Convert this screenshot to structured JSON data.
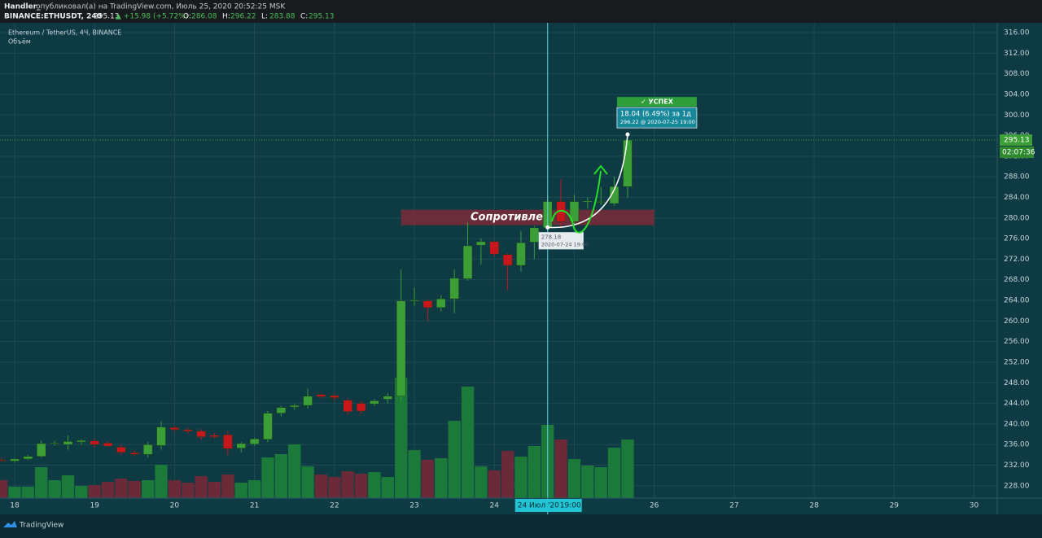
{
  "header": {
    "author": "Handler_",
    "published": "опубликовал(а) на TradingView.com, Июль 25, 2020 20:52:25 MSK",
    "symbol": "BINANCE:ETHUSDT, 240",
    "last": "295.13",
    "change": "▲ +15.98 (+5.72%)",
    "ohlc": [
      {
        "label": "O:",
        "value": "286.08"
      },
      {
        "label": "H:",
        "value": "296.22"
      },
      {
        "label": "L:",
        "value": "283.88"
      },
      {
        "label": "C:",
        "value": "295.13"
      }
    ]
  },
  "chart_data": {
    "type": "candlestick",
    "legend_title": "Ethereum / TetherUS, 4Ч, BINANCE",
    "legend_volume": "Объём",
    "x": [
      17.8333,
      18,
      18.1667,
      18.3333,
      18.5,
      18.6667,
      18.8333,
      19,
      19.1667,
      19.3333,
      19.5,
      19.6667,
      19.8333,
      20,
      20.1667,
      20.3333,
      20.5,
      20.6667,
      20.8333,
      21,
      21.1667,
      21.3333,
      21.5,
      21.6667,
      21.8333,
      22,
      22.1667,
      22.3333,
      22.5,
      22.6667,
      22.8333,
      23,
      23.1667,
      23.3333,
      23.5,
      23.6667,
      23.8333,
      24,
      24.1667,
      24.3333,
      24.5,
      24.6667,
      24.8333,
      25,
      25.1667,
      25.3333,
      25.5,
      25.6667
    ],
    "open": [
      233.0,
      232.8,
      233.2,
      233.7,
      236.2,
      236.0,
      236.5,
      236.7,
      236.3,
      235.5,
      234.4,
      234.1,
      235.8,
      239.3,
      238.9,
      238.6,
      237.8,
      237.9,
      235.3,
      236.1,
      237.0,
      242.1,
      243.3,
      243.6,
      245.7,
      245.5,
      244.6,
      244.0,
      243.9,
      244.8,
      245.4,
      263.8,
      263.9,
      262.6,
      264.3,
      268.2,
      274.7,
      275.4,
      272.9,
      270.8,
      275.3,
      278.1,
      283.2,
      279.3,
      283.1,
      283.1,
      282.8,
      286.08
    ],
    "high": [
      233.4,
      233.4,
      234.0,
      236.8,
      236.7,
      237.8,
      237.0,
      237.2,
      236.6,
      236.0,
      234.8,
      236.5,
      240.5,
      239.6,
      239.2,
      239.0,
      238.2,
      238.5,
      236.5,
      237.3,
      242.5,
      243.5,
      243.9,
      246.8,
      246.0,
      245.8,
      245.0,
      244.4,
      244.8,
      246.0,
      270.0,
      266.5,
      264.2,
      265.0,
      270.0,
      279.2,
      276.0,
      275.6,
      273.2,
      277.5,
      278.5,
      284.5,
      287.5,
      284.5,
      284.0,
      286.0,
      288.0,
      296.22
    ],
    "low": [
      232.7,
      232.5,
      233.0,
      233.5,
      235.8,
      235.0,
      236.0,
      235.5,
      235.5,
      234.0,
      233.8,
      233.5,
      235.0,
      238.5,
      238.2,
      237.0,
      237.2,
      234.0,
      234.5,
      235.8,
      236.5,
      241.5,
      242.8,
      243.0,
      245.0,
      244.5,
      241.8,
      242.0,
      243.5,
      244.0,
      244.5,
      263.0,
      260.0,
      261.8,
      261.5,
      267.8,
      271.0,
      272.5,
      266.0,
      269.6,
      272.0,
      276.5,
      278.0,
      278.6,
      281.8,
      282.5,
      282.4,
      283.88
    ],
    "close": [
      232.8,
      233.2,
      233.7,
      236.2,
      236.3,
      236.6,
      236.8,
      236.0,
      235.7,
      234.5,
      234.1,
      236.0,
      239.4,
      238.9,
      238.6,
      237.5,
      237.5,
      235.2,
      236.2,
      237.1,
      242.1,
      243.2,
      243.6,
      245.4,
      245.3,
      245.1,
      242.4,
      242.5,
      244.5,
      245.4,
      263.9,
      264.0,
      262.6,
      264.3,
      268.3,
      274.6,
      275.4,
      273.0,
      270.8,
      275.2,
      278.1,
      283.2,
      279.3,
      283.2,
      283.3,
      283.2,
      286.1,
      295.13
    ],
    "volume": [
      22,
      14,
      14,
      38,
      22,
      28,
      15,
      16,
      20,
      24,
      21,
      22,
      41,
      22,
      19,
      27,
      20,
      29,
      19,
      22,
      50,
      54,
      66,
      39,
      29,
      26,
      33,
      30,
      32,
      26,
      148,
      59,
      47,
      49,
      95,
      137,
      39,
      34,
      58,
      51,
      64,
      90,
      72,
      48,
      40,
      38,
      62,
      72
    ],
    "up_color": "#3c9e36",
    "down_color": "#c8161d",
    "volume_up_color": "#1b7a3a",
    "volume_down_color": "#6a2a37",
    "xlim": [
      17.817,
      30.29
    ],
    "ylim": [
      225.6,
      317.9
    ],
    "xticks": [
      18,
      19,
      20,
      21,
      22,
      23,
      24,
      25,
      26,
      27,
      28,
      29,
      30
    ],
    "yticks": [
      {
        "value": 228,
        "label": "228.00"
      },
      {
        "value": 232,
        "label": "232.00"
      },
      {
        "value": 236,
        "label": "236.00"
      },
      {
        "value": 240,
        "label": "240.00"
      },
      {
        "value": 244,
        "label": "244.00"
      },
      {
        "value": 248,
        "label": "248.00"
      },
      {
        "value": 252,
        "label": "252.00"
      },
      {
        "value": 256,
        "label": "256.00"
      },
      {
        "value": 260,
        "label": "260.00"
      },
      {
        "value": 264,
        "label": "264.00"
      },
      {
        "value": 268,
        "label": "268.00"
      },
      {
        "value": 272,
        "label": "272.00"
      },
      {
        "value": 276,
        "label": "276.00"
      },
      {
        "value": 280,
        "label": "280.00"
      },
      {
        "value": 284,
        "label": "284.00"
      },
      {
        "value": 288,
        "label": "288.00"
      },
      {
        "value": 292,
        "label": "292.00"
      },
      {
        "value": 296,
        "label": "296.00"
      },
      {
        "value": 300,
        "label": "300.00"
      },
      {
        "value": 304,
        "label": "304.00"
      },
      {
        "value": 308,
        "label": "308.00"
      },
      {
        "value": 312,
        "label": "312.00"
      },
      {
        "value": 316,
        "label": "316.00"
      }
    ],
    "grid": true,
    "zone": {
      "x": [
        22.8333,
        26
      ],
      "y": [
        278.6,
        281.6
      ],
      "label": "Сопротивлен",
      "color": "#8a2a35"
    },
    "measure": {
      "x": [
        24.6667,
        25.6667
      ],
      "y": [
        278.18,
        296.22
      ],
      "badge": "✓ УСПЕХ",
      "result": "18.04 (6.49%) за 1д",
      "end_label": "296.22 @ 2020-07-25 19:00",
      "start_price": "278.18",
      "start_time": "2020-07-24 19:00"
    },
    "crosshair": {
      "x": 24.6667,
      "date_label": "24 Июл '20",
      "time_label": "19:00"
    },
    "last_price_label": "295.13",
    "countdown": "02:07:36"
  },
  "footer": {
    "brand": "TradingView"
  }
}
